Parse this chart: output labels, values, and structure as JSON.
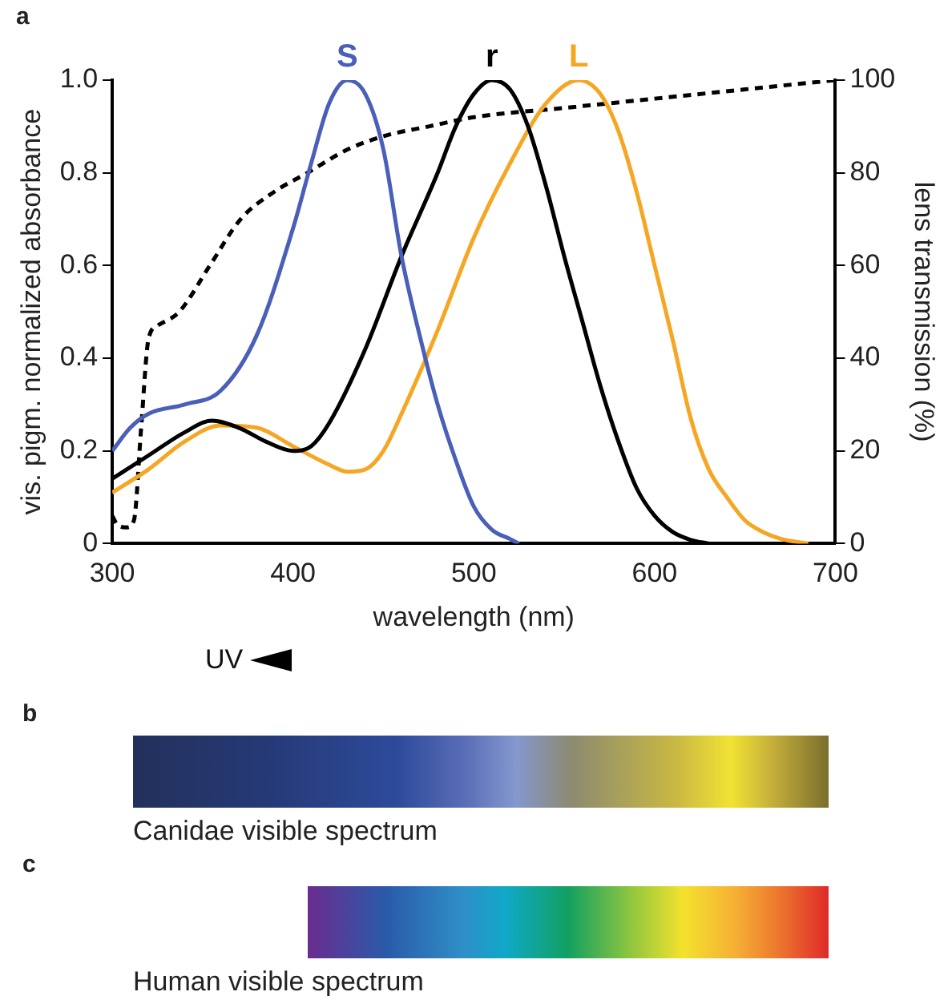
{
  "chart_data": [
    {
      "type": "line",
      "title": "a",
      "xlabel": "wavelength (nm)",
      "ylabel": "vis. pigm. normalized absorbance",
      "y2label": "lens transmission (%)",
      "annotations": [
        "UV"
      ],
      "marker": "none",
      "line_style": "solid",
      "grid": false,
      "legend": false,
      "xlim": [
        300,
        700
      ],
      "xticks": [
        300,
        400,
        500,
        600,
        700
      ],
      "ylim": [
        0,
        1
      ],
      "yticks": [
        0,
        {
          "value": 0.2,
          "label": "0.2"
        },
        {
          "value": 0.4,
          "label": "0.4"
        },
        {
          "value": 0.6,
          "label": "0.6"
        },
        {
          "value": 0.8,
          "label": "0.8"
        },
        {
          "value": 1,
          "label": "1.0"
        }
      ],
      "y2lim": [
        0,
        100
      ],
      "y2ticks": [
        0,
        20,
        40,
        60,
        80,
        100
      ],
      "series": [
        {
          "name": "S",
          "color": "#4a5fb8",
          "x": [
            300,
            310,
            320,
            340,
            360,
            380,
            400,
            410,
            420,
            430,
            440,
            450,
            460,
            470,
            480,
            490,
            500,
            510,
            520,
            525
          ],
          "values": [
            0.2,
            0.25,
            0.28,
            0.3,
            0.33,
            0.45,
            0.68,
            0.82,
            0.95,
            1.0,
            0.97,
            0.85,
            0.62,
            0.45,
            0.3,
            0.18,
            0.08,
            0.03,
            0.01,
            0
          ]
        },
        {
          "name": "r",
          "color": "#000000",
          "x": [
            300,
            320,
            340,
            355,
            370,
            385,
            400,
            410,
            420,
            440,
            460,
            480,
            490,
            500,
            510,
            520,
            530,
            540,
            550,
            560,
            570,
            580,
            590,
            600,
            610,
            620,
            630
          ],
          "values": [
            0.14,
            0.19,
            0.24,
            0.265,
            0.25,
            0.22,
            0.2,
            0.21,
            0.26,
            0.42,
            0.62,
            0.8,
            0.9,
            0.97,
            1.0,
            0.98,
            0.9,
            0.77,
            0.62,
            0.48,
            0.34,
            0.22,
            0.12,
            0.06,
            0.025,
            0.008,
            0
          ]
        },
        {
          "name": "L",
          "color": "#f5a623",
          "x": [
            300,
            320,
            340,
            360,
            380,
            400,
            420,
            430,
            440,
            450,
            460,
            480,
            500,
            520,
            540,
            558,
            570,
            580,
            590,
            600,
            610,
            620,
            630,
            640,
            650,
            660,
            670,
            685
          ],
          "values": [
            0.11,
            0.16,
            0.22,
            0.255,
            0.25,
            0.21,
            0.17,
            0.155,
            0.16,
            0.2,
            0.28,
            0.46,
            0.66,
            0.82,
            0.95,
            1.0,
            0.97,
            0.89,
            0.76,
            0.6,
            0.44,
            0.27,
            0.16,
            0.1,
            0.05,
            0.025,
            0.01,
            0
          ]
        },
        {
          "color": "#000000",
          "axis": "y2",
          "line_style": "dashed",
          "x": [
            300,
            303,
            308,
            312,
            316,
            320,
            325,
            337,
            354,
            371,
            390,
            408,
            430,
            451,
            475,
            500,
            550,
            600,
            650,
            700
          ],
          "values": [
            6,
            4,
            3.5,
            5,
            25,
            44,
            47,
            50,
            60,
            70,
            76,
            80,
            85,
            88,
            90,
            92,
            94,
            96,
            98,
            100
          ]
        }
      ]
    },
    {
      "type": "other",
      "title": "b",
      "annotations": [
        "Canidae visible spectrum"
      ]
    },
    {
      "type": "other",
      "title": "c",
      "annotations": [
        "Human visible spectrum"
      ]
    }
  ]
}
